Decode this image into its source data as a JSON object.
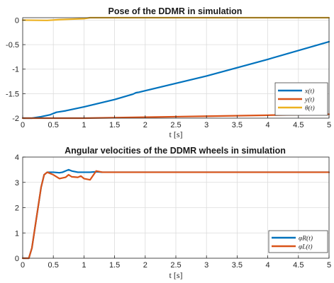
{
  "chart_data": [
    {
      "type": "line",
      "title": "Pose of the DDMR in simulation",
      "xlabel": "t [s]",
      "ylabel": "",
      "xlim": [
        0,
        5
      ],
      "ylim": [
        -2,
        0.05
      ],
      "x_ticks": [
        "0",
        "0.5",
        "1",
        "1.5",
        "2",
        "2.5",
        "3",
        "3.5",
        "4",
        "4.5",
        "5"
      ],
      "y_ticks": [
        "-2",
        "-1.5",
        "-1",
        "-0.5",
        "0"
      ],
      "grid": true,
      "legend_position": "bottom-right",
      "series": [
        {
          "name": "x(t)",
          "color": "#0072BD",
          "points": [
            [
              0,
              -2.0
            ],
            [
              0.15,
              -2.0
            ],
            [
              0.3,
              -1.97
            ],
            [
              0.45,
              -1.93
            ],
            [
              0.55,
              -1.88
            ],
            [
              0.65,
              -1.86
            ],
            [
              0.7,
              -1.85
            ],
            [
              1.0,
              -1.77
            ],
            [
              1.5,
              -1.62
            ],
            [
              1.8,
              -1.51
            ],
            [
              1.85,
              -1.48
            ],
            [
              1.9,
              -1.47
            ],
            [
              2.0,
              -1.44
            ],
            [
              3.0,
              -1.14
            ],
            [
              4.0,
              -0.8
            ],
            [
              5.0,
              -0.44
            ]
          ]
        },
        {
          "name": "y(t)",
          "color": "#D95319",
          "points": [
            [
              0,
              -2.0
            ],
            [
              1.0,
              -2.0
            ],
            [
              2.0,
              -1.98
            ],
            [
              3.0,
              -1.96
            ],
            [
              4.0,
              -1.94
            ],
            [
              5.0,
              -1.92
            ]
          ]
        },
        {
          "name": "θ(t)",
          "color": "#EDB120",
          "points": [
            [
              0,
              0.0
            ],
            [
              0.4,
              -0.005
            ],
            [
              0.6,
              0.01
            ],
            [
              0.8,
              0.02
            ],
            [
              1.0,
              0.03
            ],
            [
              1.1,
              0.05
            ],
            [
              1.3,
              0.05
            ],
            [
              5.0,
              0.05
            ]
          ]
        }
      ]
    },
    {
      "type": "line",
      "title": "Angular velocities of the DDMR wheels in simulation",
      "xlabel": "t [s]",
      "ylabel": "",
      "xlim": [
        0,
        5
      ],
      "ylim": [
        0,
        4
      ],
      "x_ticks": [
        "0",
        "0.5",
        "1",
        "1.5",
        "2",
        "2.5",
        "3",
        "3.5",
        "4",
        "4.5",
        "5"
      ],
      "y_ticks": [
        "0",
        "1",
        "2",
        "3",
        "4"
      ],
      "grid": true,
      "legend_position": "bottom-right",
      "series": [
        {
          "name": "φR(t)",
          "color": "#0072BD",
          "points": [
            [
              0,
              0
            ],
            [
              0.1,
              0
            ],
            [
              0.15,
              0.4
            ],
            [
              0.2,
              1.2
            ],
            [
              0.25,
              2.0
            ],
            [
              0.3,
              2.8
            ],
            [
              0.35,
              3.3
            ],
            [
              0.4,
              3.4
            ],
            [
              0.5,
              3.4
            ],
            [
              0.6,
              3.38
            ],
            [
              0.65,
              3.4
            ],
            [
              0.7,
              3.45
            ],
            [
              0.75,
              3.5
            ],
            [
              0.8,
              3.45
            ],
            [
              0.9,
              3.4
            ],
            [
              1.0,
              3.4
            ],
            [
              1.1,
              3.4
            ],
            [
              1.2,
              3.42
            ],
            [
              1.3,
              3.4
            ],
            [
              5.0,
              3.4
            ]
          ]
        },
        {
          "name": "φL(t)",
          "color": "#D95319",
          "points": [
            [
              0,
              0
            ],
            [
              0.1,
              0
            ],
            [
              0.15,
              0.4
            ],
            [
              0.2,
              1.2
            ],
            [
              0.25,
              2.0
            ],
            [
              0.3,
              2.8
            ],
            [
              0.35,
              3.3
            ],
            [
              0.4,
              3.4
            ],
            [
              0.5,
              3.3
            ],
            [
              0.6,
              3.15
            ],
            [
              0.7,
              3.2
            ],
            [
              0.75,
              3.3
            ],
            [
              0.8,
              3.22
            ],
            [
              0.9,
              3.2
            ],
            [
              0.95,
              3.25
            ],
            [
              1.0,
              3.15
            ],
            [
              1.1,
              3.1
            ],
            [
              1.2,
              3.45
            ],
            [
              1.3,
              3.4
            ],
            [
              5.0,
              3.4
            ]
          ]
        }
      ]
    }
  ]
}
